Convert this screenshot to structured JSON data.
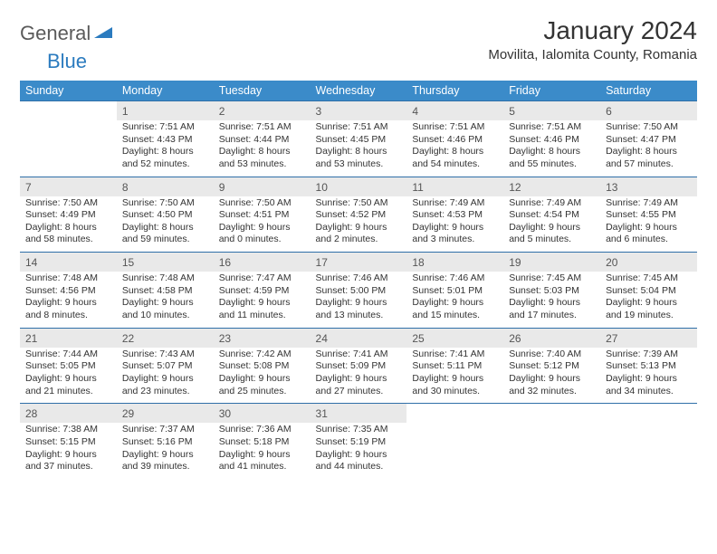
{
  "logo": {
    "word1": "General",
    "word2": "Blue"
  },
  "title": "January 2024",
  "location": "Movilita, Ialomita County, Romania",
  "colors": {
    "header_bg": "#3b8bc9",
    "header_text": "#ffffff",
    "daynum_bg": "#e9e9e9",
    "row_border": "#2f6fa8",
    "logo_gray": "#5a5a5a",
    "logo_blue": "#2b7bbf"
  },
  "day_headers": [
    "Sunday",
    "Monday",
    "Tuesday",
    "Wednesday",
    "Thursday",
    "Friday",
    "Saturday"
  ],
  "weeks": [
    {
      "nums": [
        "",
        "1",
        "2",
        "3",
        "4",
        "5",
        "6"
      ],
      "cells": [
        "",
        "Sunrise: 7:51 AM\nSunset: 4:43 PM\nDaylight: 8 hours and 52 minutes.",
        "Sunrise: 7:51 AM\nSunset: 4:44 PM\nDaylight: 8 hours and 53 minutes.",
        "Sunrise: 7:51 AM\nSunset: 4:45 PM\nDaylight: 8 hours and 53 minutes.",
        "Sunrise: 7:51 AM\nSunset: 4:46 PM\nDaylight: 8 hours and 54 minutes.",
        "Sunrise: 7:51 AM\nSunset: 4:46 PM\nDaylight: 8 hours and 55 minutes.",
        "Sunrise: 7:50 AM\nSunset: 4:47 PM\nDaylight: 8 hours and 57 minutes."
      ]
    },
    {
      "nums": [
        "7",
        "8",
        "9",
        "10",
        "11",
        "12",
        "13"
      ],
      "cells": [
        "Sunrise: 7:50 AM\nSunset: 4:49 PM\nDaylight: 8 hours and 58 minutes.",
        "Sunrise: 7:50 AM\nSunset: 4:50 PM\nDaylight: 8 hours and 59 minutes.",
        "Sunrise: 7:50 AM\nSunset: 4:51 PM\nDaylight: 9 hours and 0 minutes.",
        "Sunrise: 7:50 AM\nSunset: 4:52 PM\nDaylight: 9 hours and 2 minutes.",
        "Sunrise: 7:49 AM\nSunset: 4:53 PM\nDaylight: 9 hours and 3 minutes.",
        "Sunrise: 7:49 AM\nSunset: 4:54 PM\nDaylight: 9 hours and 5 minutes.",
        "Sunrise: 7:49 AM\nSunset: 4:55 PM\nDaylight: 9 hours and 6 minutes."
      ]
    },
    {
      "nums": [
        "14",
        "15",
        "16",
        "17",
        "18",
        "19",
        "20"
      ],
      "cells": [
        "Sunrise: 7:48 AM\nSunset: 4:56 PM\nDaylight: 9 hours and 8 minutes.",
        "Sunrise: 7:48 AM\nSunset: 4:58 PM\nDaylight: 9 hours and 10 minutes.",
        "Sunrise: 7:47 AM\nSunset: 4:59 PM\nDaylight: 9 hours and 11 minutes.",
        "Sunrise: 7:46 AM\nSunset: 5:00 PM\nDaylight: 9 hours and 13 minutes.",
        "Sunrise: 7:46 AM\nSunset: 5:01 PM\nDaylight: 9 hours and 15 minutes.",
        "Sunrise: 7:45 AM\nSunset: 5:03 PM\nDaylight: 9 hours and 17 minutes.",
        "Sunrise: 7:45 AM\nSunset: 5:04 PM\nDaylight: 9 hours and 19 minutes."
      ]
    },
    {
      "nums": [
        "21",
        "22",
        "23",
        "24",
        "25",
        "26",
        "27"
      ],
      "cells": [
        "Sunrise: 7:44 AM\nSunset: 5:05 PM\nDaylight: 9 hours and 21 minutes.",
        "Sunrise: 7:43 AM\nSunset: 5:07 PM\nDaylight: 9 hours and 23 minutes.",
        "Sunrise: 7:42 AM\nSunset: 5:08 PM\nDaylight: 9 hours and 25 minutes.",
        "Sunrise: 7:41 AM\nSunset: 5:09 PM\nDaylight: 9 hours and 27 minutes.",
        "Sunrise: 7:41 AM\nSunset: 5:11 PM\nDaylight: 9 hours and 30 minutes.",
        "Sunrise: 7:40 AM\nSunset: 5:12 PM\nDaylight: 9 hours and 32 minutes.",
        "Sunrise: 7:39 AM\nSunset: 5:13 PM\nDaylight: 9 hours and 34 minutes."
      ]
    },
    {
      "nums": [
        "28",
        "29",
        "30",
        "31",
        "",
        "",
        ""
      ],
      "cells": [
        "Sunrise: 7:38 AM\nSunset: 5:15 PM\nDaylight: 9 hours and 37 minutes.",
        "Sunrise: 7:37 AM\nSunset: 5:16 PM\nDaylight: 9 hours and 39 minutes.",
        "Sunrise: 7:36 AM\nSunset: 5:18 PM\nDaylight: 9 hours and 41 minutes.",
        "Sunrise: 7:35 AM\nSunset: 5:19 PM\nDaylight: 9 hours and 44 minutes.",
        "",
        "",
        ""
      ]
    }
  ]
}
